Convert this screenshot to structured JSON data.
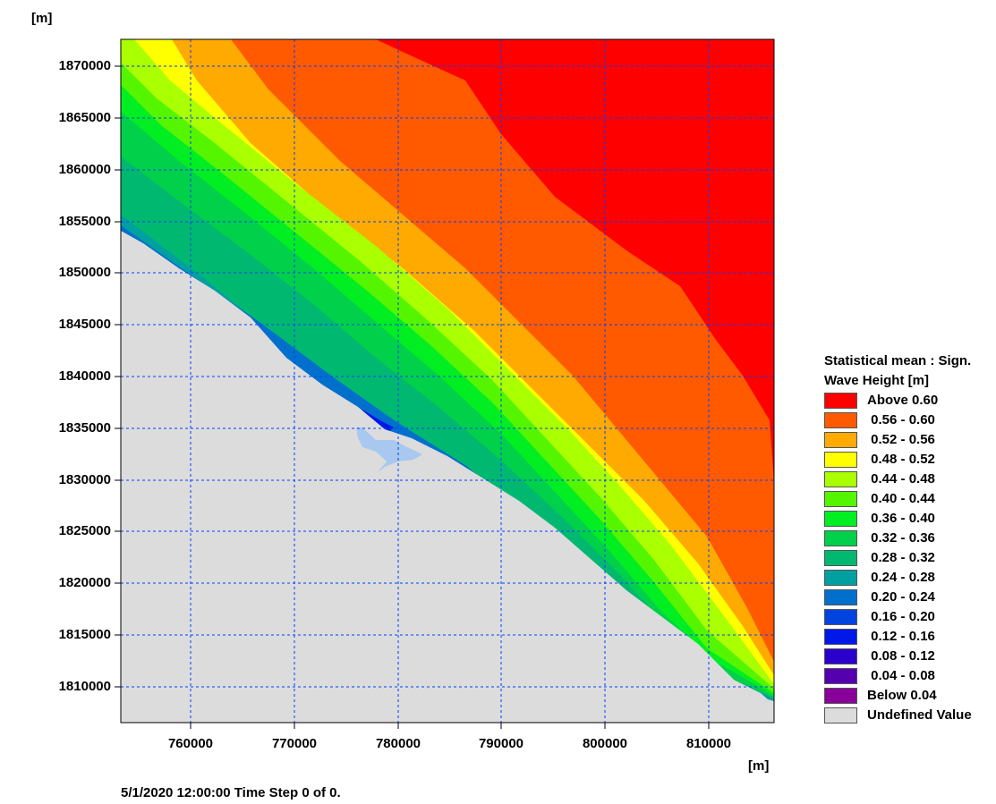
{
  "chart_data": {
    "type": "heatmap",
    "title": "",
    "x_unit": "[m]",
    "y_unit": "[m]",
    "xlim": [
      753300,
      816300
    ],
    "ylim": [
      1806500,
      1872600
    ],
    "x_ticks": [
      "760000",
      "770000",
      "780000",
      "790000",
      "800000",
      "810000"
    ],
    "y_ticks": [
      "1870000",
      "1865000",
      "1860000",
      "1855000",
      "1850000",
      "1845000",
      "1840000",
      "1835000",
      "1830000",
      "1825000",
      "1820000",
      "1815000",
      "1810000"
    ],
    "grid": true,
    "legend_placement": "right",
    "legend_title_line1": "Statistical mean : Sign.",
    "legend_title_line2": "Wave Height [m]",
    "legend": [
      {
        "label": "Above 0.60",
        "color": "#ff0000"
      },
      {
        "label": " 0.56 - 0.60",
        "color": "#ff5a00"
      },
      {
        "label": " 0.52 - 0.56",
        "color": "#ffaa00"
      },
      {
        "label": " 0.48 - 0.52",
        "color": "#ffff00"
      },
      {
        "label": " 0.44 - 0.48",
        "color": "#aaff00"
      },
      {
        "label": " 0.40 - 0.44",
        "color": "#55f500"
      },
      {
        "label": " 0.36 - 0.40",
        "color": "#00ee22"
      },
      {
        "label": " 0.32 - 0.36",
        "color": "#00d04a"
      },
      {
        "label": " 0.28 - 0.32",
        "color": "#00b870"
      },
      {
        "label": " 0.24 - 0.28",
        "color": "#00a0a0"
      },
      {
        "label": " 0.20 - 0.24",
        "color": "#0070cc"
      },
      {
        "label": " 0.16 - 0.20",
        "color": "#0044e0"
      },
      {
        "label": " 0.12 - 0.16",
        "color": "#0018e8"
      },
      {
        "label": " 0.08 - 0.12",
        "color": "#2c00cc"
      },
      {
        "label": " 0.04 - 0.08",
        "color": "#5500b0"
      },
      {
        "label": "Below 0.04",
        "color": "#880099"
      },
      {
        "label": "Undefined Value",
        "color": "#dcdcdc"
      }
    ],
    "timestamp": "5/1/2020 12:00:00  Time Step 0 of 0."
  }
}
